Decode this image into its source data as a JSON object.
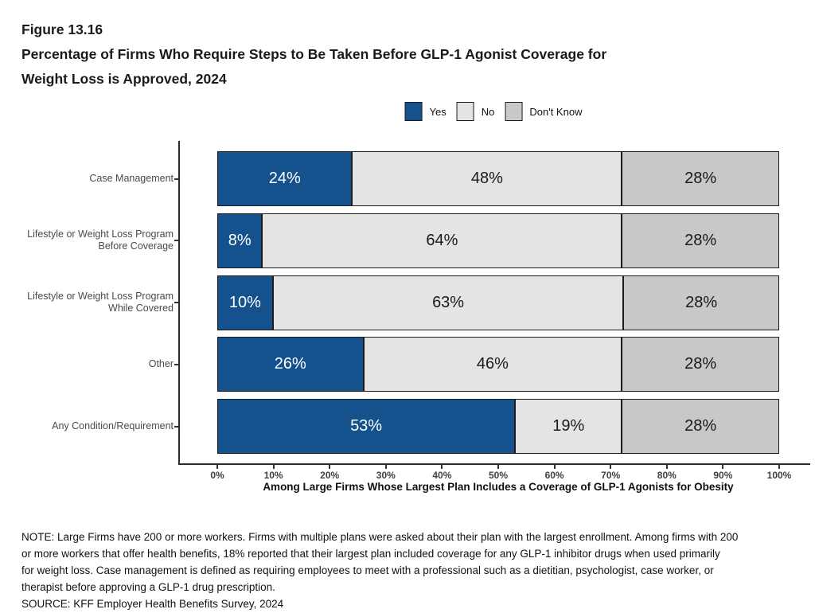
{
  "title": {
    "figure_number": "Figure 13.16",
    "line1": "Percentage of Firms Who Require Steps to Be Taken Before GLP-1 Agonist Coverage for",
    "line2": "Weight Loss is Approved, 2024"
  },
  "legend": {
    "items": [
      {
        "label": "Yes",
        "color": "#15518c"
      },
      {
        "label": "No",
        "color": "#e4e4e4"
      },
      {
        "label": "Don't Know",
        "color": "#c8c8c8"
      }
    ]
  },
  "chart_data": {
    "type": "bar",
    "orientation": "horizontal-stacked",
    "title": "Percentage of Firms Who Require Steps to Be Taken Before GLP-1 Agonist Coverage for Weight Loss is Approved, 2024",
    "categories": [
      "Case Management",
      "Lifestyle or Weight Loss Program\nBefore Coverage",
      "Lifestyle or Weight Loss Program\nWhile Covered",
      "Other",
      "Any Condition/Requirement"
    ],
    "series": [
      {
        "name": "Yes",
        "color": "#15518c",
        "text_color": "#ffffff",
        "values": [
          24,
          8,
          10,
          26,
          53
        ]
      },
      {
        "name": "No",
        "color": "#e4e4e4",
        "text_color": "#1a1a1a",
        "values": [
          48,
          64,
          63,
          46,
          19
        ]
      },
      {
        "name": "Don't Know",
        "color": "#c8c8c8",
        "text_color": "#1a1a1a",
        "values": [
          28,
          28,
          28,
          28,
          28
        ]
      }
    ],
    "value_suffix": "%",
    "xlabel": "Among Large Firms Whose Largest Plan Includes a Coverage of GLP-1 Agonists for Obesity",
    "xlim": [
      0,
      100
    ],
    "x_ticks": [
      "0%",
      "10%",
      "20%",
      "30%",
      "40%",
      "50%",
      "60%",
      "70%",
      "80%",
      "90%",
      "100%"
    ],
    "grid": false,
    "legend_position": "top-center"
  },
  "notes": {
    "lines": [
      "NOTE: Large Firms have 200 or more workers.  Firms with multiple plans were asked about their plan with the largest enrollment.  Among firms with 200",
      "or more workers that offer health benefits, 18% reported that their largest plan included coverage for any GLP-1 inhibitor drugs when used primarily",
      "for weight loss. Case management is defined as requiring employees to meet with a professional such as a dietitian, psychologist, case worker, or",
      "therapist before approving a GLP-1 drug prescription.",
      "SOURCE: KFF Employer Health Benefits Survey, 2024"
    ]
  }
}
